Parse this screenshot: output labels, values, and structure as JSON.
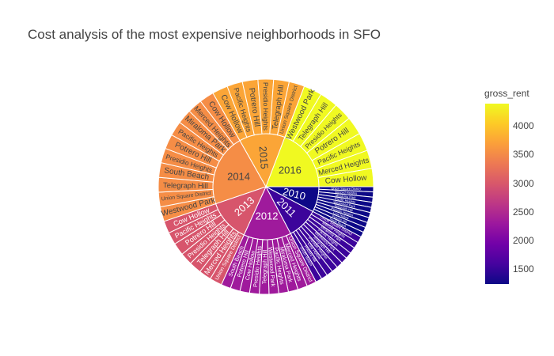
{
  "title": "Cost analysis of the most expensive neighborhoods in SFO",
  "colorbar": {
    "title": "gross_rent",
    "ticks": [
      "4000",
      "3500",
      "3000",
      "2500",
      "2000",
      "1500"
    ],
    "tick_values": [
      4000,
      3500,
      3000,
      2500,
      2000,
      1500
    ],
    "range": [
      1239,
      4390
    ],
    "colorscale": [
      "#0d0887",
      "#46039f",
      "#7201a8",
      "#9c179e",
      "#bd3786",
      "#d8576b",
      "#ed7953",
      "#fb9f3a",
      "#fdca26",
      "#f0f921"
    ]
  },
  "chart_data": {
    "type": "sunburst",
    "color_metric": "gross_rent",
    "years": [
      {
        "label": "2010",
        "gross_rent": 1239,
        "neighborhoods": [
          "Union Square District",
          "Merced Heights",
          "Miraloma Park",
          "Pacific Heights",
          "Westwood Park",
          "Telegraph Hill",
          "Presidio Heights",
          "Cow Hollow",
          "Potrero Hill",
          "South Beach"
        ]
      },
      {
        "label": "2011",
        "gross_rent": 1530,
        "neighborhoods": [
          "Union Square District",
          "Merced Heights",
          "Miraloma Park",
          "Pacific Heights",
          "Westwood Park",
          "Telegraph Hill",
          "Presidio Heights",
          "Cow Hollow",
          "Potrero Hill",
          "South Beach"
        ]
      },
      {
        "label": "2012",
        "gross_rent": 2324,
        "neighborhoods": [
          "Union Square District",
          "Merced Heights",
          "Miraloma Park",
          "Pacific Heights",
          "Westwood Park",
          "Telegraph Hill",
          "Presidio Heights",
          "Cow Hollow",
          "Potrero Hill",
          "South Beach"
        ]
      },
      {
        "label": "2013",
        "gross_rent": 2971,
        "neighborhoods": [
          "Union Square District",
          "Merced Heights",
          "Telegraph Hill",
          "Presidio Heights",
          "Potrero Hill",
          "Pacific Heights",
          "Cow Hollow"
        ]
      },
      {
        "label": "2014",
        "gross_rent": 3528,
        "neighborhoods": [
          "Westwood Park",
          "Union Square District",
          "Telegraph Hill",
          "South Beach",
          "Presidio Heights",
          "Potrero Hill",
          "Pacific Heights",
          "Miraloma Park",
          "Merced Heights",
          "Cow Hollow"
        ]
      },
      {
        "label": "2015",
        "gross_rent": 3739,
        "neighborhoods": [
          "Cow Hollow",
          "Pacific Heights",
          "Potrero Hill",
          "Presidio Heights",
          "Telegraph Hill",
          "Union Square District"
        ]
      },
      {
        "label": "2016",
        "gross_rent": 4390,
        "neighborhoods": [
          "Westwood Park",
          "Telegraph Hill",
          "Presidio Heights",
          "Potrero Hill",
          "Pacific Heights",
          "Merced Heights",
          "Cow Hollow"
        ]
      }
    ]
  }
}
